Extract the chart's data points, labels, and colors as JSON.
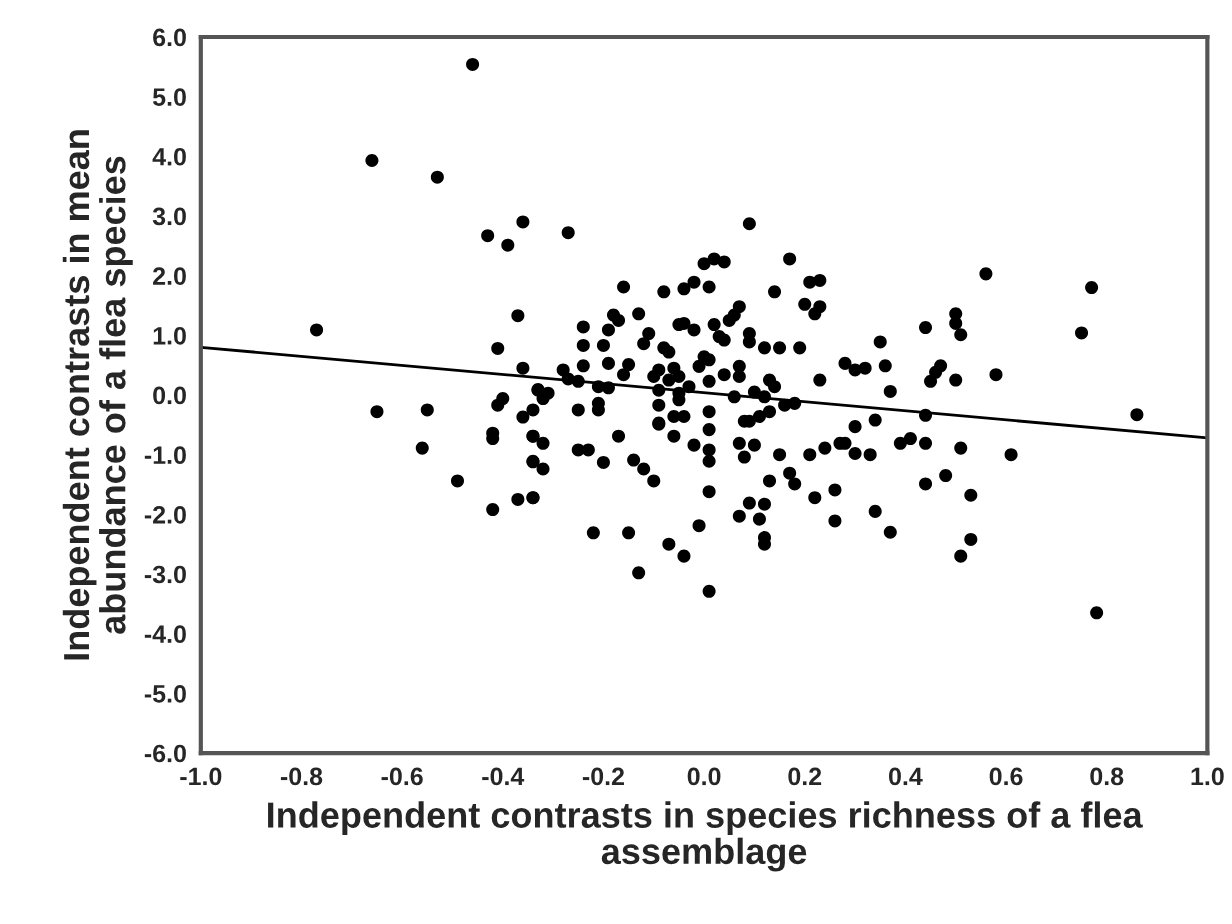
{
  "chart_data": {
    "type": "scatter",
    "xlabel": "Independent contrasts in species richness of a flea assemblage",
    "ylabel": "Independent contrasts in mean abundance of a flea species",
    "xlim": [
      -1.0,
      1.0
    ],
    "ylim": [
      -6.0,
      6.0
    ],
    "xticks": [
      {
        "value": -1.0,
        "label": "-1.0"
      },
      {
        "value": -0.8,
        "label": "-0.8"
      },
      {
        "value": -0.6,
        "label": "-0.6"
      },
      {
        "value": -0.4,
        "label": "-0.4"
      },
      {
        "value": -0.2,
        "label": "-0.2"
      },
      {
        "value": 0.0,
        "label": "0.0"
      },
      {
        "value": 0.2,
        "label": "0.2"
      },
      {
        "value": 0.4,
        "label": "0.4"
      },
      {
        "value": 0.6,
        "label": "0.6"
      },
      {
        "value": 0.8,
        "label": "0.8"
      },
      {
        "value": 1.0,
        "label": "1.0"
      }
    ],
    "yticks": [
      {
        "value": -6.0,
        "label": "-6.0"
      },
      {
        "value": -5.0,
        "label": "-5.0"
      },
      {
        "value": -4.0,
        "label": "-4.0"
      },
      {
        "value": -3.0,
        "label": "-3.0"
      },
      {
        "value": -2.0,
        "label": "-2.0"
      },
      {
        "value": -1.0,
        "label": "-1.0"
      },
      {
        "value": 0.0,
        "label": "0.0"
      },
      {
        "value": 1.0,
        "label": "1.0"
      },
      {
        "value": 2.0,
        "label": "2.0"
      },
      {
        "value": 3.0,
        "label": "3.0"
      },
      {
        "value": 4.0,
        "label": "4.0"
      },
      {
        "value": 5.0,
        "label": "5.0"
      },
      {
        "value": 6.0,
        "label": "6.0"
      }
    ],
    "grid": false,
    "legend": false,
    "marker": "circle",
    "series": [
      {
        "color": "#000000",
        "x": [
          -0.46,
          -0.66,
          -0.53,
          -0.43,
          -0.39,
          -0.36,
          -0.77,
          -0.37,
          -0.41,
          -0.36,
          -0.65,
          -0.55,
          -0.56,
          -0.49,
          -0.42,
          -0.37,
          -0.34,
          -0.41,
          -0.4,
          -0.36,
          -0.34,
          -0.33,
          -0.42,
          -0.42,
          -0.34,
          -0.34,
          -0.27,
          0.09,
          0.0,
          0.02,
          0.04,
          0.17,
          -0.16,
          -0.08,
          -0.04,
          -0.02,
          0.01,
          0.14,
          0.21,
          0.23,
          0.2,
          0.23,
          0.22,
          -0.18,
          -0.17,
          -0.13,
          -0.24,
          -0.19,
          -0.05,
          -0.04,
          -0.02,
          0.02,
          0.07,
          0.06,
          0.05,
          0.09,
          0.09,
          0.04,
          0.03,
          -0.11,
          -0.12,
          -0.08,
          -0.07,
          -0.24,
          -0.2,
          0.12,
          0.15,
          0.19,
          0.28,
          0.3,
          0.32,
          0.23,
          -0.24,
          -0.28,
          -0.19,
          -0.15,
          -0.16,
          -0.1,
          -0.09,
          -0.06,
          -0.07,
          -0.05,
          0.0,
          0.01,
          -0.01,
          0.04,
          0.07,
          0.07,
          0.01,
          -0.03,
          0.13,
          0.14,
          -0.25,
          -0.27,
          -0.21,
          -0.19,
          -0.09,
          -0.05,
          0.06,
          0.1,
          0.12,
          0.16,
          0.18,
          -0.31,
          -0.32,
          -0.33,
          -0.21,
          -0.25,
          -0.09,
          -0.05,
          -0.04,
          -0.06,
          0.01,
          0.13,
          0.11,
          0.09,
          0.3,
          -0.09,
          -0.21,
          -0.09,
          -0.06,
          0.01,
          -0.17,
          -0.34,
          -0.32,
          -0.34,
          -0.32,
          -0.34,
          -0.25,
          -0.23,
          -0.2,
          -0.02,
          0.01,
          0.01,
          -0.14,
          -0.12,
          -0.1,
          0.01,
          -0.01,
          -0.22,
          -0.15,
          -0.07,
          -0.04,
          -0.13,
          0.01,
          0.08,
          0.07,
          0.1,
          0.08,
          0.15,
          0.13,
          0.17,
          0.18,
          0.21,
          0.24,
          0.27,
          0.28,
          0.3,
          0.09,
          0.12,
          0.07,
          0.11,
          0.12,
          0.12,
          0.22,
          0.26,
          0.26,
          0.56,
          0.77,
          0.75,
          0.44,
          0.5,
          0.5,
          0.51,
          0.35,
          0.36,
          0.37,
          0.47,
          0.46,
          0.45,
          0.5,
          0.58,
          0.34,
          0.44,
          0.86,
          0.33,
          0.39,
          0.41,
          0.44,
          0.51,
          0.61,
          0.48,
          0.44,
          0.53,
          0.34,
          0.37,
          0.53,
          0.51,
          0.78
        ],
        "values": [
          5.54,
          3.93,
          3.65,
          2.67,
          2.51,
          2.9,
          1.09,
          1.33,
          0.78,
          0.45,
          -0.28,
          -0.25,
          -0.89,
          -1.44,
          -1.92,
          -1.75,
          -1.72,
          -0.17,
          -0.06,
          -0.37,
          -0.25,
          0.09,
          -0.64,
          -0.73,
          -0.69,
          -1.12,
          2.72,
          2.87,
          2.2,
          2.28,
          2.23,
          2.28,
          1.81,
          1.73,
          1.78,
          1.89,
          1.81,
          1.73,
          1.89,
          1.92,
          1.52,
          1.48,
          1.36,
          1.34,
          1.25,
          1.36,
          1.14,
          1.09,
          1.18,
          1.2,
          1.09,
          1.18,
          1.48,
          1.34,
          1.25,
          1.03,
          0.89,
          0.92,
          0.98,
          1.03,
          0.86,
          0.79,
          0.72,
          0.83,
          0.83,
          0.79,
          0.79,
          0.79,
          0.53,
          0.42,
          0.45,
          0.25,
          0.49,
          0.42,
          0.53,
          0.51,
          0.34,
          0.31,
          0.42,
          0.45,
          0.25,
          0.31,
          0.64,
          0.59,
          0.48,
          0.34,
          0.48,
          0.31,
          0.23,
          0.14,
          0.25,
          0.14,
          0.23,
          0.27,
          0.14,
          0.12,
          0.08,
          0.03,
          -0.03,
          0.05,
          -0.03,
          -0.17,
          -0.14,
          0.03,
          -0.06,
          0.08,
          -0.14,
          -0.25,
          -0.17,
          -0.08,
          -0.36,
          -0.36,
          -0.28,
          -0.28,
          -0.36,
          -0.44,
          -0.53,
          -0.47,
          -0.25,
          -0.49,
          -0.69,
          -0.58,
          -0.69,
          -0.69,
          -0.81,
          -1.11,
          -1.24,
          -1.72,
          -0.92,
          -0.92,
          -1.13,
          -0.84,
          -0.92,
          -1.11,
          -1.09,
          -1.24,
          -1.44,
          -1.62,
          -2.19,
          -2.31,
          -2.31,
          -2.5,
          -2.7,
          -2.98,
          -3.29,
          -0.44,
          -0.81,
          -0.84,
          -1.04,
          -1.0,
          -1.44,
          -1.31,
          -1.49,
          -1.0,
          -0.89,
          -0.81,
          -0.81,
          -0.98,
          -1.81,
          -1.83,
          -2.03,
          -2.08,
          -2.39,
          -2.5,
          -1.72,
          -1.59,
          -2.11,
          2.03,
          1.8,
          1.04,
          1.13,
          1.36,
          1.2,
          1.01,
          0.89,
          0.49,
          0.06,
          0.49,
          0.38,
          0.23,
          0.25,
          0.34,
          -0.42,
          -0.34,
          -0.33,
          -1.0,
          -0.81,
          -0.73,
          -0.81,
          -0.89,
          -1.0,
          -1.35,
          -1.49,
          -1.68,
          -1.95,
          -2.3,
          -2.42,
          -2.7,
          -3.65
        ]
      },
      {
        "type": "line",
        "color": "#000000",
        "marker": "none",
        "x": [
          -1.0,
          1.0
        ],
        "values": [
          0.8,
          -0.72
        ]
      }
    ]
  }
}
